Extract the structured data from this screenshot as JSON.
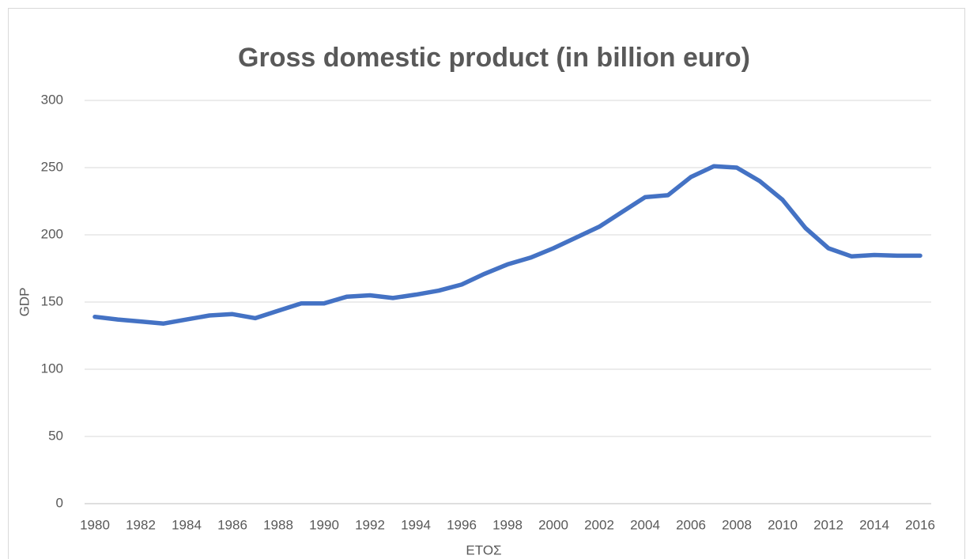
{
  "chart_data": {
    "type": "line",
    "title": "Gross domestic product (in billion euro)",
    "x_label": "ΕΤΟΣ",
    "y_label": "GDP",
    "x": [
      1980,
      1981,
      1982,
      1983,
      1984,
      1985,
      1986,
      1987,
      1988,
      1989,
      1990,
      1991,
      1992,
      1993,
      1994,
      1995,
      1996,
      1997,
      1998,
      1999,
      2000,
      2001,
      2002,
      2003,
      2004,
      2005,
      2006,
      2007,
      2008,
      2009,
      2010,
      2011,
      2012,
      2013,
      2014,
      2015,
      2016
    ],
    "series": [
      {
        "name": "GDP",
        "color": "#4472c4",
        "values": [
          139,
          137,
          135.5,
          134,
          137,
          140,
          141,
          138,
          143.5,
          149,
          149,
          154,
          155,
          153,
          155.5,
          158.5,
          163,
          171,
          178,
          183,
          190,
          198,
          206,
          217,
          228,
          229.5,
          243,
          251,
          250,
          240,
          226,
          205,
          190,
          184,
          185,
          184.5,
          184.5
        ]
      }
    ],
    "xlim": [
      1980,
      2016
    ],
    "xticks": [
      1980,
      1982,
      1984,
      1986,
      1988,
      1990,
      1992,
      1994,
      1996,
      1998,
      2000,
      2002,
      2004,
      2006,
      2008,
      2010,
      2012,
      2014,
      2016
    ],
    "ylim": [
      0,
      300
    ],
    "yticks": [
      0,
      50,
      100,
      150,
      200,
      250,
      300
    ],
    "grid": true
  }
}
